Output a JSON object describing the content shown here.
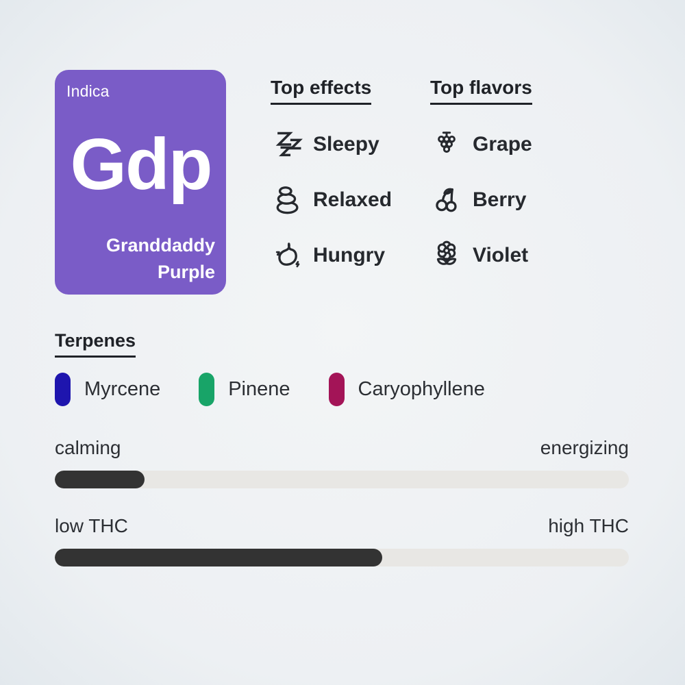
{
  "strain_card": {
    "type_label": "Indica",
    "abbreviation": "Gdp",
    "name_lines": [
      "Granddaddy",
      "Purple"
    ],
    "bg_color": "#7a5cc7",
    "text_color": "#ffffff"
  },
  "top_effects": {
    "heading": "Top effects",
    "items": [
      {
        "icon": "sleepy-icon",
        "label": "Sleepy"
      },
      {
        "icon": "stacked-stones-icon",
        "label": "Relaxed"
      },
      {
        "icon": "stomach-icon",
        "label": "Hungry"
      }
    ]
  },
  "top_flavors": {
    "heading": "Top flavors",
    "items": [
      {
        "icon": "grape-icon",
        "label": "Grape"
      },
      {
        "icon": "cherries-icon",
        "label": "Berry"
      },
      {
        "icon": "flower-icon",
        "label": "Violet"
      }
    ]
  },
  "terpenes": {
    "heading": "Terpenes",
    "items": [
      {
        "label": "Myrcene",
        "color": "#1e15ae"
      },
      {
        "label": "Pinene",
        "color": "#18a468"
      },
      {
        "label": "Caryophyllene",
        "color": "#a31457"
      }
    ]
  },
  "scales": [
    {
      "left_label": "calming",
      "right_label": "energizing",
      "fill_pct": 15.6
    },
    {
      "left_label": "low THC",
      "right_label": "high THC",
      "fill_pct": 57
    }
  ],
  "colors": {
    "icon_stroke": "#26292e",
    "track": "#e8e7e4",
    "fill": "#333333",
    "background_center": "#f1f3f5",
    "background_edge": "#9cb4c8"
  }
}
